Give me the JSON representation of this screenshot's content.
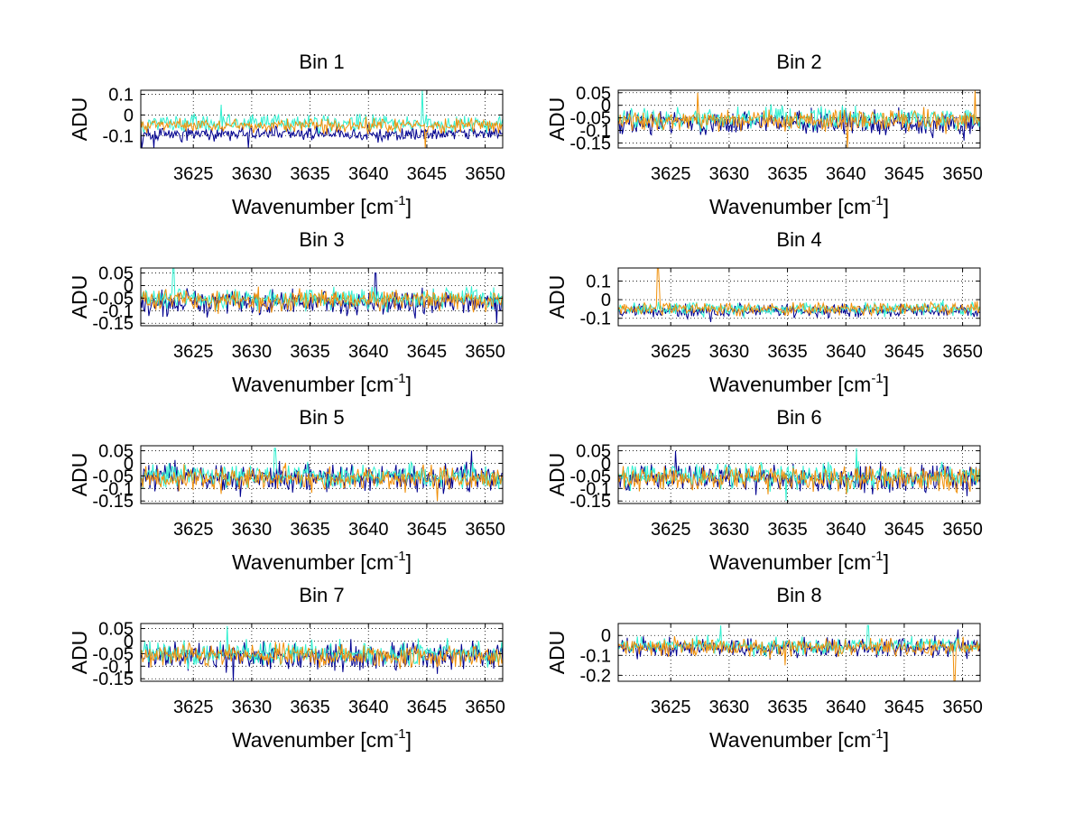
{
  "figure": {
    "background": "#ffffff"
  },
  "series_colors": [
    "#00008f",
    "#30f0d0",
    "#f0900a"
  ],
  "chart_data": [
    {
      "type": "line",
      "title": "Bin 1",
      "xlabel": "Wavenumber [cm",
      "xlabel_sup": "-1",
      "xlabel_end": "]",
      "ylabel": "ADU",
      "xlim": [
        3620.5,
        3651.5
      ],
      "ylim": [
        -0.16,
        0.12
      ],
      "xticks": [
        3625,
        3630,
        3635,
        3640,
        3645,
        3650
      ],
      "yticks": [
        -0.1,
        0,
        0.1
      ],
      "yticklabels": [
        "-0.1",
        "0",
        "0.1"
      ],
      "grid": "dotted",
      "series": [
        {
          "mean": -0.09,
          "amp": 0.025,
          "seed": 11,
          "spikes": [
            [
              3620.6,
              -0.16
            ],
            [
              3621.6,
              -0.16
            ],
            [
              3629.7,
              -0.16
            ]
          ]
        },
        {
          "mean": -0.04,
          "amp": 0.03,
          "seed": 12,
          "spikes": [
            [
              3644.6,
              0.12
            ],
            [
              3627.4,
              0.05
            ]
          ]
        },
        {
          "mean": -0.05,
          "amp": 0.025,
          "seed": 13,
          "spikes": [
            [
              3644.9,
              -0.16
            ]
          ]
        }
      ]
    },
    {
      "type": "line",
      "title": "Bin 2",
      "xlabel": "Wavenumber [cm",
      "xlabel_sup": "-1",
      "xlabel_end": "]",
      "ylabel": "ADU",
      "xlim": [
        3620.5,
        3651.5
      ],
      "ylim": [
        -0.17,
        0.06
      ],
      "xticks": [
        3625,
        3630,
        3635,
        3640,
        3645,
        3650
      ],
      "yticks": [
        -0.15,
        -0.1,
        -0.05,
        0,
        0.05
      ],
      "yticklabels": [
        "-0.15",
        "-0.1",
        "-0.05",
        "0",
        "0.05"
      ],
      "grid": "dotted",
      "series": [
        {
          "mean": -0.07,
          "amp": 0.035,
          "seed": 21,
          "spikes": [
            [
              3650.1,
              -0.14
            ]
          ]
        },
        {
          "mean": -0.05,
          "amp": 0.03,
          "seed": 22,
          "spikes": []
        },
        {
          "mean": -0.06,
          "amp": 0.03,
          "seed": 23,
          "spikes": [
            [
              3627.3,
              0.05
            ],
            [
              3640.1,
              -0.17
            ],
            [
              3651.1,
              0.06
            ]
          ]
        }
      ]
    },
    {
      "type": "line",
      "title": "Bin 3",
      "xlabel": "Wavenumber [cm",
      "xlabel_sup": "-1",
      "xlabel_end": "]",
      "ylabel": "ADU",
      "xlim": [
        3620.5,
        3651.5
      ],
      "ylim": [
        -0.16,
        0.07
      ],
      "xticks": [
        3625,
        3630,
        3635,
        3640,
        3645,
        3650
      ],
      "yticks": [
        -0.15,
        -0.1,
        -0.05,
        0,
        0.05
      ],
      "yticklabels": [
        "-0.15",
        "-0.1",
        "-0.05",
        "0",
        "0.05"
      ],
      "grid": "dotted",
      "series": [
        {
          "mean": -0.07,
          "amp": 0.035,
          "seed": 31,
          "spikes": [
            [
              3640.6,
              0.05
            ],
            [
              3651.0,
              -0.15
            ]
          ]
        },
        {
          "mean": -0.05,
          "amp": 0.03,
          "seed": 32,
          "spikes": [
            [
              3623.3,
              0.07
            ]
          ]
        },
        {
          "mean": -0.06,
          "amp": 0.03,
          "seed": 33,
          "spikes": []
        }
      ]
    },
    {
      "type": "line",
      "title": "Bin 4",
      "xlabel": "Wavenumber [cm",
      "xlabel_sup": "-1",
      "xlabel_end": "]",
      "ylabel": "ADU",
      "xlim": [
        3620.5,
        3651.5
      ],
      "ylim": [
        -0.14,
        0.17
      ],
      "xticks": [
        3625,
        3630,
        3635,
        3640,
        3645,
        3650
      ],
      "yticks": [
        -0.1,
        0,
        0.1
      ],
      "yticklabels": [
        "-0.1",
        "0",
        "0.1"
      ],
      "grid": "dotted",
      "series": [
        {
          "mean": -0.06,
          "amp": 0.025,
          "seed": 41,
          "spikes": [
            [
              3628.4,
              -0.12
            ]
          ]
        },
        {
          "mean": -0.05,
          "amp": 0.025,
          "seed": 42,
          "spikes": []
        },
        {
          "mean": -0.05,
          "amp": 0.025,
          "seed": 43,
          "spikes": [
            [
              3623.9,
              0.17
            ],
            [
              3624.0,
              0.06
            ]
          ]
        }
      ]
    },
    {
      "type": "line",
      "title": "Bin 5",
      "xlabel": "Wavenumber [cm",
      "xlabel_sup": "-1",
      "xlabel_end": "]",
      "ylabel": "ADU",
      "xlim": [
        3620.5,
        3651.5
      ],
      "ylim": [
        -0.16,
        0.07
      ],
      "xticks": [
        3625,
        3630,
        3635,
        3640,
        3645,
        3650
      ],
      "yticks": [
        -0.15,
        -0.1,
        -0.05,
        0,
        0.05
      ],
      "yticklabels": [
        "-0.15",
        "-0.1",
        "-0.05",
        "0",
        "0.05"
      ],
      "grid": "dotted",
      "series": [
        {
          "mean": -0.06,
          "amp": 0.04,
          "seed": 51,
          "spikes": [
            [
              3648.8,
              0.05
            ]
          ]
        },
        {
          "mean": -0.05,
          "amp": 0.035,
          "seed": 52,
          "spikes": [
            [
              3632.0,
              0.06
            ]
          ]
        },
        {
          "mean": -0.06,
          "amp": 0.035,
          "seed": 53,
          "spikes": [
            [
              3645.9,
              -0.15
            ]
          ]
        }
      ]
    },
    {
      "type": "line",
      "title": "Bin 6",
      "xlabel": "Wavenumber [cm",
      "xlabel_sup": "-1",
      "xlabel_end": "]",
      "ylabel": "ADU",
      "xlim": [
        3620.5,
        3651.5
      ],
      "ylim": [
        -0.16,
        0.07
      ],
      "xticks": [
        3625,
        3630,
        3635,
        3640,
        3645,
        3650
      ],
      "yticks": [
        -0.15,
        -0.1,
        -0.05,
        0,
        0.05
      ],
      "yticklabels": [
        "-0.15",
        "-0.1",
        "-0.05",
        "0",
        "0.05"
      ],
      "grid": "dotted",
      "series": [
        {
          "mean": -0.06,
          "amp": 0.04,
          "seed": 61,
          "spikes": [
            [
              3625.4,
              0.05
            ]
          ]
        },
        {
          "mean": -0.05,
          "amp": 0.035,
          "seed": 62,
          "spikes": [
            [
              3640.9,
              0.06
            ],
            [
              3634.9,
              -0.15
            ]
          ]
        },
        {
          "mean": -0.06,
          "amp": 0.035,
          "seed": 63,
          "spikes": []
        }
      ]
    },
    {
      "type": "line",
      "title": "Bin 7",
      "xlabel": "Wavenumber [cm",
      "xlabel_sup": "-1",
      "xlabel_end": "]",
      "ylabel": "ADU",
      "xlim": [
        3620.5,
        3651.5
      ],
      "ylim": [
        -0.16,
        0.07
      ],
      "xticks": [
        3625,
        3630,
        3635,
        3640,
        3645,
        3650
      ],
      "yticks": [
        -0.15,
        -0.1,
        -0.05,
        0,
        0.05
      ],
      "yticklabels": [
        "-0.15",
        "-0.1",
        "-0.05",
        "0",
        "0.05"
      ],
      "grid": "dotted",
      "series": [
        {
          "mean": -0.06,
          "amp": 0.04,
          "seed": 71,
          "spikes": [
            [
              3628.4,
              -0.16
            ]
          ]
        },
        {
          "mean": -0.05,
          "amp": 0.035,
          "seed": 72,
          "spikes": [
            [
              3627.9,
              0.06
            ]
          ]
        },
        {
          "mean": -0.06,
          "amp": 0.035,
          "seed": 73,
          "spikes": []
        }
      ]
    },
    {
      "type": "line",
      "title": "Bin 8",
      "xlabel": "Wavenumber [cm",
      "xlabel_sup": "-1",
      "xlabel_end": "]",
      "ylabel": "ADU",
      "xlim": [
        3620.5,
        3651.5
      ],
      "ylim": [
        -0.23,
        0.06
      ],
      "xticks": [
        3625,
        3630,
        3635,
        3640,
        3645,
        3650
      ],
      "yticks": [
        -0.2,
        -0.1,
        0
      ],
      "yticklabels": [
        "-0.2",
        "-0.1",
        "0"
      ],
      "grid": "dotted",
      "series": [
        {
          "mean": -0.06,
          "amp": 0.035,
          "seed": 81,
          "spikes": [
            [
              3649.6,
              0.03
            ]
          ]
        },
        {
          "mean": -0.05,
          "amp": 0.03,
          "seed": 82,
          "spikes": [
            [
              3629.3,
              0.05
            ],
            [
              3641.9,
              0.05
            ]
          ]
        },
        {
          "mean": -0.06,
          "amp": 0.03,
          "seed": 83,
          "spikes": [
            [
              3649.3,
              -0.23
            ],
            [
              3634.8,
              -0.15
            ]
          ]
        }
      ]
    }
  ]
}
